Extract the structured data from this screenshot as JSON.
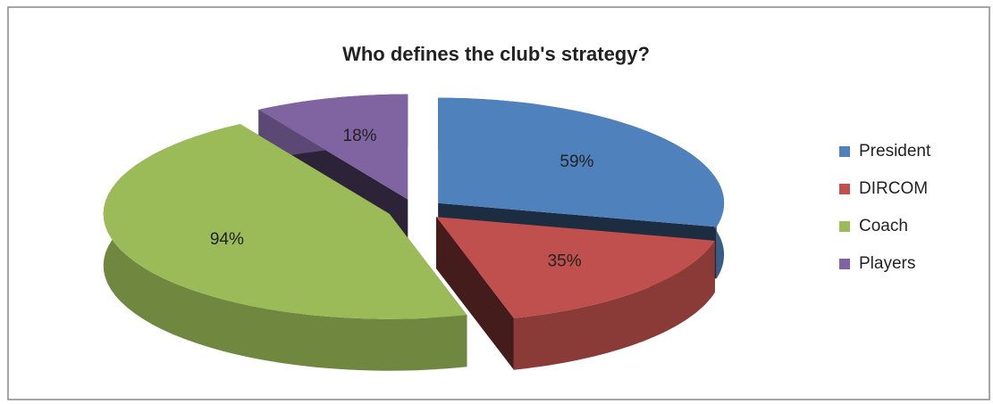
{
  "chart_data": {
    "type": "pie",
    "title": "Who defines the club's strategy?",
    "categories": [
      "President",
      "DIRCOM",
      "Coach",
      "Players"
    ],
    "values": [
      59,
      35,
      94,
      18
    ],
    "value_labels": [
      "59%",
      "35%",
      "94%",
      "18%"
    ],
    "colors": [
      "#4f81bd",
      "#c0504d",
      "#9bbb59",
      "#8064a2"
    ],
    "legend": "right"
  }
}
